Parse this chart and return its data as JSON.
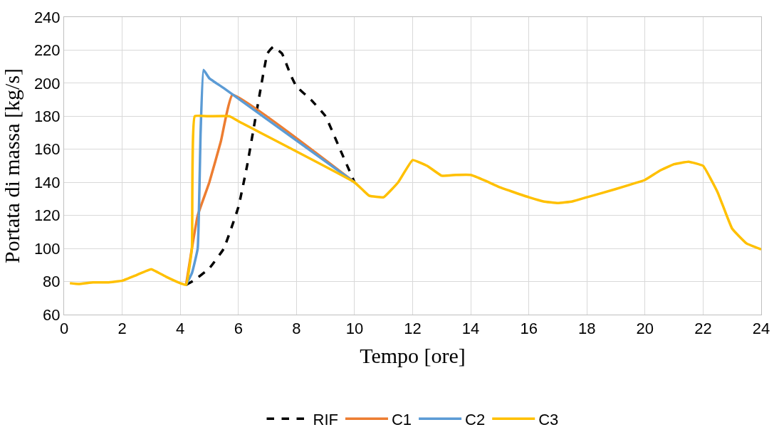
{
  "chart_data": {
    "type": "line",
    "xlabel": "Tempo [ore]",
    "ylabel": "Portata di massa [kg/s]",
    "xlim": [
      0,
      24
    ],
    "xticks": [
      0,
      2,
      4,
      6,
      8,
      10,
      12,
      14,
      16,
      18,
      20,
      22,
      24
    ],
    "ylim": [
      60,
      240
    ],
    "yticks": [
      60,
      80,
      100,
      120,
      140,
      160,
      180,
      200,
      220,
      240
    ],
    "grid": true,
    "legend": "bottom",
    "marker": "none",
    "series": [
      {
        "name": "RIF",
        "color": "#000000",
        "line_style": "dashed",
        "x": [
          4.2,
          4.5,
          5,
          5.5,
          6,
          6.3,
          6.5,
          6.8,
          7,
          7.2,
          7.5,
          7.8,
          8,
          8.5,
          9,
          9.5,
          10
        ],
        "values": [
          78,
          81,
          88,
          100,
          125,
          150,
          170,
          200,
          218,
          222,
          218,
          205,
          198,
          190,
          180,
          160,
          140
        ]
      },
      {
        "name": "C1",
        "color": "#ed7d31",
        "line_style": "solid",
        "x": [
          4.2,
          4.4,
          4.6,
          5,
          5.4,
          5.8,
          10
        ],
        "values": [
          78,
          100,
          120,
          140,
          165,
          193,
          140
        ]
      },
      {
        "name": "C2",
        "color": "#5b9bd5",
        "line_style": "solid",
        "x": [
          4.2,
          4.4,
          4.6,
          4.7,
          4.8,
          5,
          5.5,
          10
        ],
        "values": [
          78,
          85,
          100,
          170,
          208,
          203,
          197,
          140
        ]
      },
      {
        "name": "C3",
        "color": "#ffc000",
        "line_style": "solid",
        "x": [
          0.2,
          0.5,
          1,
          1.5,
          2,
          2.5,
          3,
          3.5,
          4,
          4.2,
          4.4,
          4.5,
          5,
          5.7,
          6,
          10,
          10.5,
          11,
          11.5,
          12,
          12.5,
          13,
          13.5,
          14,
          14.5,
          15,
          16,
          16.5,
          17,
          17.5,
          18,
          19,
          20,
          20.5,
          21,
          21.5,
          22,
          22.5,
          23,
          23.5,
          24
        ],
        "values": [
          79,
          78.5,
          79.5,
          79.5,
          80.5,
          84,
          87.5,
          83,
          79,
          78,
          100,
          180,
          180,
          180,
          177,
          140,
          132,
          131,
          140,
          153.5,
          150,
          144,
          144.5,
          144.5,
          141,
          137,
          131,
          128.5,
          127.5,
          128.5,
          131,
          136,
          141.5,
          147,
          151,
          152.5,
          150,
          134,
          112,
          103,
          99.5
        ]
      }
    ]
  }
}
